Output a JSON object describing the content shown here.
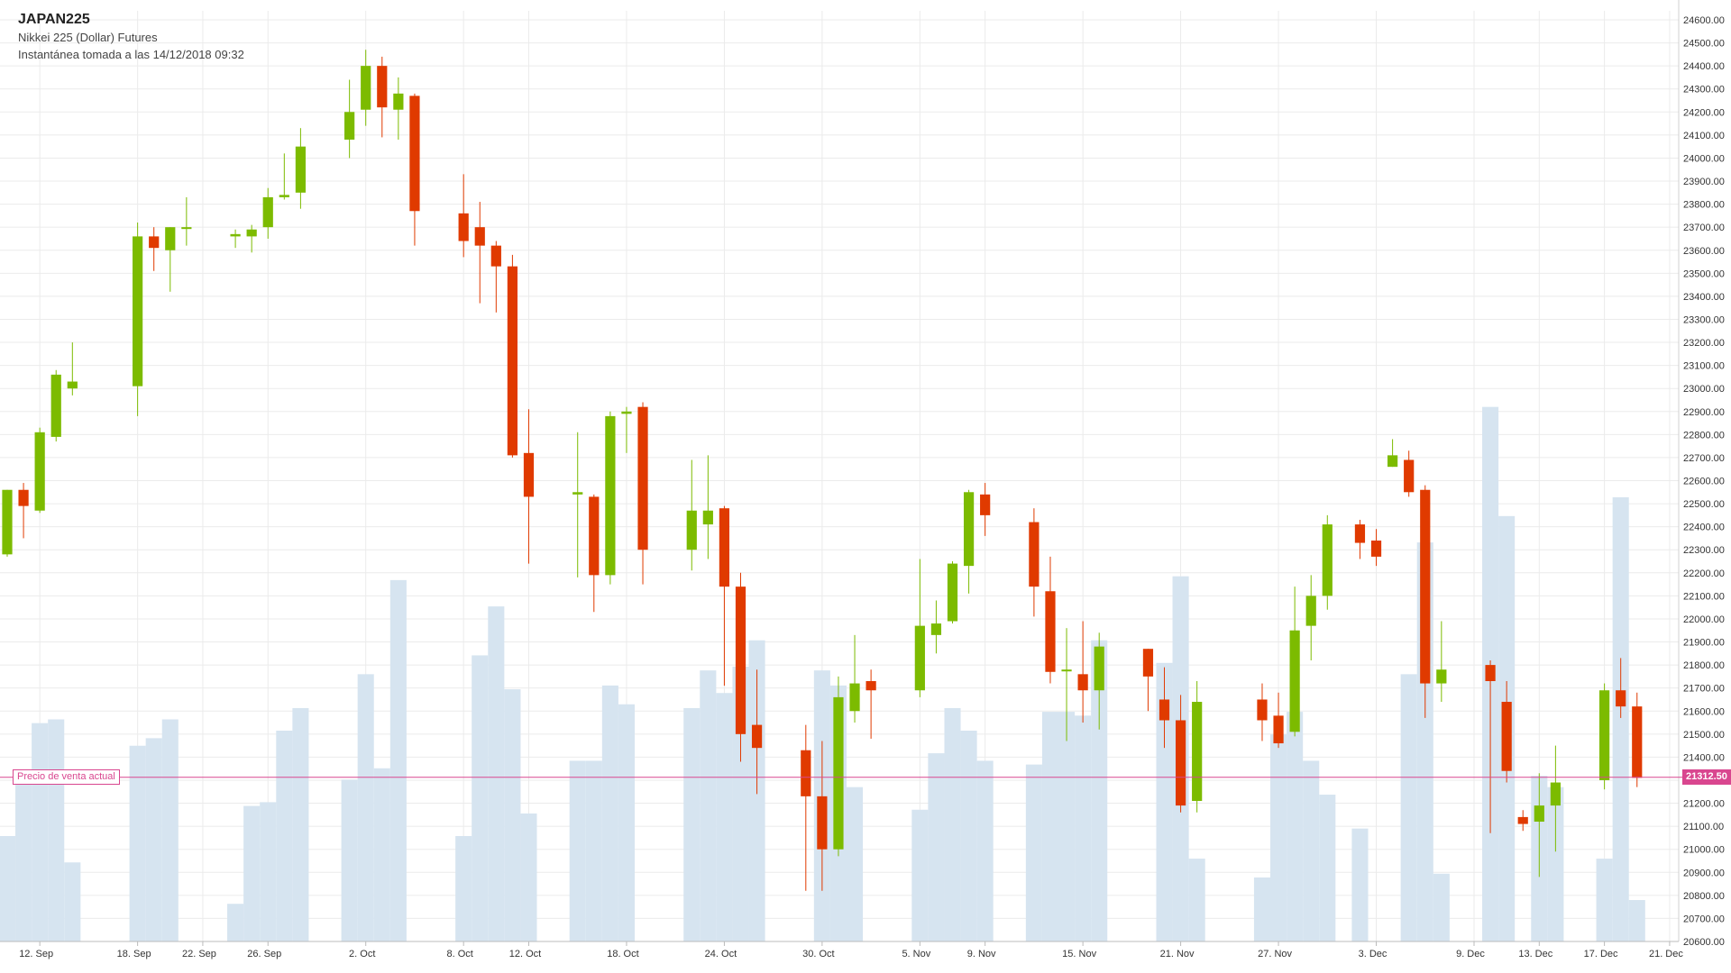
{
  "header": {
    "symbol": "JAPAN225",
    "instrument": "Nikkei 225 (Dollar) Futures",
    "snapshot": "Instantánea tomada a las 14/12/2018 09:32"
  },
  "current_bid": {
    "label": "Precio de venta actual",
    "value": "21312.50"
  },
  "colors": {
    "up": "#7cbb00",
    "down": "#e03a00",
    "volume": "#d6e4f0",
    "grid": "#ebebeb",
    "bid_line": "#d9468f"
  },
  "chart_data": {
    "type": "candlestick",
    "ylim": [
      20600,
      24600
    ],
    "y_ticks": [
      "24600.00",
      "24500.00",
      "24400.00",
      "24300.00",
      "24200.00",
      "24100.00",
      "24000.00",
      "23900.00",
      "23800.00",
      "23700.00",
      "23600.00",
      "23500.00",
      "23400.00",
      "23300.00",
      "23200.00",
      "23100.00",
      "23000.00",
      "22900.00",
      "22800.00",
      "22700.00",
      "22600.00",
      "22500.00",
      "22400.00",
      "22300.00",
      "22200.00",
      "22100.00",
      "22000.00",
      "21900.00",
      "21800.00",
      "21700.00",
      "21600.00",
      "21500.00",
      "21400.00",
      "21300.00",
      "21200.00",
      "21100.00",
      "21000.00",
      "20900.00",
      "20800.00",
      "20700.00",
      "20600.00"
    ],
    "x_labels": [
      "12. Sep",
      "18. Sep",
      "22. Sep",
      "26. Sep",
      "2. Oct",
      "8. Oct",
      "12. Oct",
      "18. Oct",
      "24. Oct",
      "30. Oct",
      "5. Nov",
      "9. Nov",
      "15. Nov",
      "21. Nov",
      "27. Nov",
      "3. Dec",
      "9. Dec",
      "13. Dec",
      "17. Dec",
      "21. Dec"
    ],
    "x_range": [
      "2018-09-10",
      "2018-12-22"
    ],
    "candles": [
      {
        "date": "2018-09-10",
        "open": 22280,
        "high": 22560,
        "low": 22270,
        "close": 22560,
        "volume": 28
      },
      {
        "date": "2018-09-11",
        "open": 22560,
        "high": 22590,
        "low": 22350,
        "close": 22490,
        "volume": 42
      },
      {
        "date": "2018-09-12",
        "open": 22470,
        "high": 22830,
        "low": 22460,
        "close": 22810,
        "volume": 58
      },
      {
        "date": "2018-09-13",
        "open": 22790,
        "high": 23080,
        "low": 22770,
        "close": 23060,
        "volume": 59
      },
      {
        "date": "2018-09-14",
        "open": 23000,
        "high": 23200,
        "low": 22970,
        "close": 23030,
        "volume": 21
      },
      {
        "date": "2018-09-18",
        "open": 23010,
        "high": 23720,
        "low": 22880,
        "close": 23660,
        "volume": 52
      },
      {
        "date": "2018-09-19",
        "open": 23660,
        "high": 23700,
        "low": 23510,
        "close": 23610,
        "volume": 54
      },
      {
        "date": "2018-09-20",
        "open": 23600,
        "high": 23700,
        "low": 23420,
        "close": 23700,
        "volume": 59
      },
      {
        "date": "2018-09-21",
        "open": 23700,
        "high": 23830,
        "low": 23620,
        "close": 23700,
        "volume": 0
      },
      {
        "date": "2018-09-24",
        "open": 23660,
        "high": 23690,
        "low": 23610,
        "close": 23670,
        "volume": 10
      },
      {
        "date": "2018-09-25",
        "open": 23660,
        "high": 23710,
        "low": 23590,
        "close": 23690,
        "volume": 36
      },
      {
        "date": "2018-09-26",
        "open": 23700,
        "high": 23870,
        "low": 23650,
        "close": 23830,
        "volume": 37
      },
      {
        "date": "2018-09-27",
        "open": 23830,
        "high": 24020,
        "low": 23820,
        "close": 23840,
        "volume": 56
      },
      {
        "date": "2018-09-28",
        "open": 23850,
        "high": 24130,
        "low": 23780,
        "close": 24050,
        "volume": 62
      },
      {
        "date": "2018-10-01",
        "open": 24080,
        "high": 24340,
        "low": 24000,
        "close": 24200,
        "volume": 43
      },
      {
        "date": "2018-10-02",
        "open": 24210,
        "high": 24470,
        "low": 24140,
        "close": 24400,
        "volume": 71
      },
      {
        "date": "2018-10-03",
        "open": 24400,
        "high": 24440,
        "low": 24090,
        "close": 24220,
        "volume": 46
      },
      {
        "date": "2018-10-04",
        "open": 24210,
        "high": 24350,
        "low": 24080,
        "close": 24280,
        "volume": 96
      },
      {
        "date": "2018-10-05",
        "open": 24270,
        "high": 24280,
        "low": 23620,
        "close": 23770,
        "volume": 0
      },
      {
        "date": "2018-10-08",
        "open": 23760,
        "high": 23930,
        "low": 23570,
        "close": 23640,
        "volume": 28
      },
      {
        "date": "2018-10-09",
        "open": 23700,
        "high": 23810,
        "low": 23370,
        "close": 23620,
        "volume": 76
      },
      {
        "date": "2018-10-10",
        "open": 23620,
        "high": 23640,
        "low": 23330,
        "close": 23530,
        "volume": 89
      },
      {
        "date": "2018-10-11",
        "open": 23530,
        "high": 23580,
        "low": 22700,
        "close": 22710,
        "volume": 67
      },
      {
        "date": "2018-10-12",
        "open": 22720,
        "high": 22910,
        "low": 22240,
        "close": 22530,
        "volume": 34
      },
      {
        "date": "2018-10-15",
        "open": 22540,
        "high": 22810,
        "low": 22180,
        "close": 22550,
        "volume": 48
      },
      {
        "date": "2018-10-16",
        "open": 22530,
        "high": 22540,
        "low": 22030,
        "close": 22190,
        "volume": 48
      },
      {
        "date": "2018-10-17",
        "open": 22190,
        "high": 22900,
        "low": 22150,
        "close": 22880,
        "volume": 68
      },
      {
        "date": "2018-10-18",
        "open": 22890,
        "high": 22920,
        "low": 22720,
        "close": 22900,
        "volume": 63
      },
      {
        "date": "2018-10-19",
        "open": 22920,
        "high": 22940,
        "low": 22150,
        "close": 22300,
        "volume": 0
      },
      {
        "date": "2018-10-22",
        "open": 22300,
        "high": 22690,
        "low": 22210,
        "close": 22470,
        "volume": 62
      },
      {
        "date": "2018-10-23",
        "open": 22410,
        "high": 22710,
        "low": 22260,
        "close": 22470,
        "volume": 72
      },
      {
        "date": "2018-10-24",
        "open": 22480,
        "high": 22490,
        "low": 21710,
        "close": 22140,
        "volume": 66
      },
      {
        "date": "2018-10-25",
        "open": 22140,
        "high": 22200,
        "low": 21380,
        "close": 21500,
        "volume": 73
      },
      {
        "date": "2018-10-26",
        "open": 21540,
        "high": 21780,
        "low": 21240,
        "close": 21440,
        "volume": 80
      },
      {
        "date": "2018-10-29",
        "open": 21430,
        "high": 21540,
        "low": 20820,
        "close": 21230,
        "volume": 0
      },
      {
        "date": "2018-10-30",
        "open": 21230,
        "high": 21470,
        "low": 20820,
        "close": 21000,
        "volume": 72
      },
      {
        "date": "2018-10-31",
        "open": 21000,
        "high": 21750,
        "low": 20970,
        "close": 21660,
        "volume": 68
      },
      {
        "date": "2018-11-01",
        "open": 21600,
        "high": 21930,
        "low": 21550,
        "close": 21720,
        "volume": 41
      },
      {
        "date": "2018-11-02",
        "open": 21730,
        "high": 21780,
        "low": 21480,
        "close": 21690,
        "volume": 0
      },
      {
        "date": "2018-11-05",
        "open": 21690,
        "high": 22260,
        "low": 21660,
        "close": 21970,
        "volume": 35
      },
      {
        "date": "2018-11-06",
        "open": 21930,
        "high": 22080,
        "low": 21850,
        "close": 21980,
        "volume": 50
      },
      {
        "date": "2018-11-07",
        "open": 21990,
        "high": 22250,
        "low": 21980,
        "close": 22240,
        "volume": 62
      },
      {
        "date": "2018-11-08",
        "open": 22230,
        "high": 22560,
        "low": 22110,
        "close": 22550,
        "volume": 56
      },
      {
        "date": "2018-11-09",
        "open": 22540,
        "high": 22590,
        "low": 22360,
        "close": 22450,
        "volume": 48
      },
      {
        "date": "2018-11-12",
        "open": 22420,
        "high": 22480,
        "low": 22010,
        "close": 22140,
        "volume": 47
      },
      {
        "date": "2018-11-13",
        "open": 22120,
        "high": 22270,
        "low": 21720,
        "close": 21770,
        "volume": 61
      },
      {
        "date": "2018-11-14",
        "open": 21780,
        "high": 21960,
        "low": 21470,
        "close": 21780,
        "volume": 61
      },
      {
        "date": "2018-11-15",
        "open": 21760,
        "high": 21990,
        "low": 21550,
        "close": 21690,
        "volume": 60
      },
      {
        "date": "2018-11-16",
        "open": 21690,
        "high": 21940,
        "low": 21520,
        "close": 21880,
        "volume": 80
      },
      {
        "date": "2018-11-19",
        "open": 21870,
        "high": 21870,
        "low": 21600,
        "close": 21750,
        "volume": 0
      },
      {
        "date": "2018-11-20",
        "open": 21650,
        "high": 21790,
        "low": 21440,
        "close": 21560,
        "volume": 74
      },
      {
        "date": "2018-11-21",
        "open": 21560,
        "high": 21670,
        "low": 21160,
        "close": 21190,
        "volume": 97
      },
      {
        "date": "2018-11-22",
        "open": 21210,
        "high": 21730,
        "low": 21160,
        "close": 21640,
        "volume": 22
      },
      {
        "date": "2018-11-26",
        "open": 21650,
        "high": 21720,
        "low": 21470,
        "close": 21560,
        "volume": 17
      },
      {
        "date": "2018-11-27",
        "open": 21580,
        "high": 21680,
        "low": 21440,
        "close": 21460,
        "volume": 55
      },
      {
        "date": "2018-11-28",
        "open": 21510,
        "high": 22140,
        "low": 21490,
        "close": 21950,
        "volume": 61
      },
      {
        "date": "2018-11-29",
        "open": 21970,
        "high": 22190,
        "low": 21820,
        "close": 22100,
        "volume": 48
      },
      {
        "date": "2018-11-30",
        "open": 22100,
        "high": 22450,
        "low": 22040,
        "close": 22410,
        "volume": 39
      },
      {
        "date": "2018-12-02",
        "open": 22410,
        "high": 22430,
        "low": 22260,
        "close": 22330,
        "volume": 30
      },
      {
        "date": "2018-12-03",
        "open": 22340,
        "high": 22390,
        "low": 22230,
        "close": 22270,
        "volume": 0
      },
      {
        "date": "2018-12-04",
        "open": 22660,
        "high": 22780,
        "low": 22660,
        "close": 22710,
        "volume": 0
      },
      {
        "date": "2018-12-05",
        "open": 22690,
        "high": 22730,
        "low": 22530,
        "close": 22550,
        "volume": 71
      },
      {
        "date": "2018-12-06",
        "open": 22560,
        "high": 22580,
        "low": 21570,
        "close": 21720,
        "volume": 106
      },
      {
        "date": "2018-12-07",
        "open": 21720,
        "high": 21990,
        "low": 21640,
        "close": 21780,
        "volume": 18
      },
      {
        "date": "2018-12-10",
        "open": 21800,
        "high": 21820,
        "low": 21070,
        "close": 21730,
        "volume": 142
      },
      {
        "date": "2018-12-11",
        "open": 21640,
        "high": 21730,
        "low": 21290,
        "close": 21340,
        "volume": 113
      },
      {
        "date": "2018-12-12",
        "open": 21140,
        "high": 21170,
        "low": 21080,
        "close": 21110,
        "volume": 0
      },
      {
        "date": "2018-12-13",
        "open": 21120,
        "high": 21330,
        "low": 20880,
        "close": 21190,
        "volume": 44
      },
      {
        "date": "2018-12-14",
        "open": 21190,
        "high": 21450,
        "low": 20990,
        "close": 21290,
        "volume": 41
      },
      {
        "date": "2018-12-17",
        "open": 21300,
        "high": 21720,
        "low": 21260,
        "close": 21690,
        "volume": 22
      },
      {
        "date": "2018-12-18",
        "open": 21690,
        "high": 21830,
        "low": 21570,
        "close": 21620,
        "volume": 118
      },
      {
        "date": "2018-12-19",
        "open": 21620,
        "high": 21680,
        "low": 21270,
        "close": 21310,
        "volume": 11
      }
    ]
  }
}
